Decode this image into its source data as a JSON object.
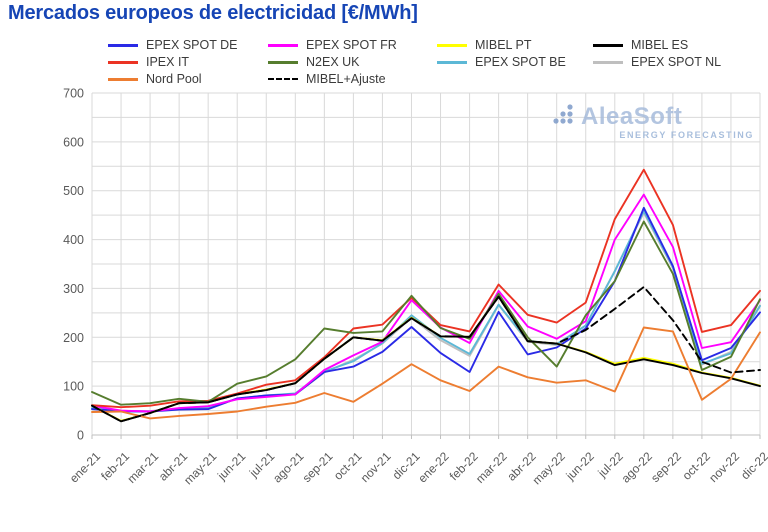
{
  "title": "Mercados europeos de electricidad [€/MWh]",
  "watermark": {
    "name": "AleaSoft",
    "tagline": "ENERGY FORECASTING"
  },
  "legend": {
    "position": "top",
    "columns": 4,
    "rows": 3
  },
  "chart_data": {
    "type": "line",
    "title": "Mercados europeos de electricidad [€/MWh]",
    "xlabel": "",
    "ylabel": "€/MWh",
    "ylim": [
      0,
      700
    ],
    "ytick_step": 100,
    "grid_step": 50,
    "grid": true,
    "legend_position": "top",
    "x": [
      "ene-21",
      "feb-21",
      "mar-21",
      "abr-21",
      "may-21",
      "jun-21",
      "jul-21",
      "ago-21",
      "sep-21",
      "oct-21",
      "nov-21",
      "dic-21",
      "ene-22",
      "feb-22",
      "mar-22",
      "abr-22",
      "may-22",
      "jun-22",
      "jul-22",
      "ago-22",
      "sep-22",
      "oct-22",
      "nov-22",
      "dic-22"
    ],
    "series": [
      {
        "name": "EPEX SPOT DE",
        "color": "#2a2ae6",
        "dash": false,
        "z": 2,
        "legend_col": 0,
        "legend_row": 0,
        "values": [
          53,
          49,
          48,
          52,
          53,
          75,
          81,
          83,
          129,
          140,
          170,
          221,
          168,
          129,
          252,
          165,
          179,
          218,
          315,
          465,
          346,
          153,
          178,
          251
        ]
      },
      {
        "name": "EPEX SPOT FR",
        "color": "#ff00ff",
        "dash": false,
        "z": 3,
        "legend_col": 1,
        "legend_row": 0,
        "values": [
          60,
          50,
          48,
          55,
          59,
          73,
          78,
          83,
          133,
          163,
          191,
          276,
          220,
          188,
          295,
          222,
          197,
          233,
          400,
          492,
          385,
          178,
          190,
          276
        ]
      },
      {
        "name": "MIBEL PT",
        "color": "#ffff00",
        "dash": false,
        "z": 4,
        "legend_col": 2,
        "legend_row": 0,
        "values": [
          60,
          29,
          45,
          65,
          67,
          84,
          93,
          106,
          156,
          200,
          194,
          240,
          202,
          201,
          284,
          192,
          187,
          170,
          146,
          158,
          146,
          128,
          117,
          101
        ]
      },
      {
        "name": "MIBEL ES",
        "color": "#000000",
        "dash": false,
        "z": 7,
        "legend_col": 3,
        "legend_row": 0,
        "values": [
          60,
          28,
          45,
          65,
          67,
          83,
          92,
          106,
          156,
          200,
          193,
          239,
          202,
          201,
          283,
          192,
          187,
          169,
          143,
          155,
          143,
          127,
          116,
          100
        ]
      },
      {
        "name": "IPEX IT",
        "color": "#eb3323",
        "dash": false,
        "z": 5,
        "legend_col": 0,
        "legend_row": 1,
        "values": [
          61,
          57,
          60,
          69,
          70,
          85,
          103,
          112,
          159,
          218,
          226,
          281,
          225,
          212,
          308,
          246,
          230,
          271,
          442,
          543,
          430,
          211,
          225,
          295
        ]
      },
      {
        "name": "N2EX UK",
        "color": "#567d2e",
        "dash": false,
        "z": 6,
        "legend_col": 1,
        "legend_row": 1,
        "values": [
          88,
          62,
          65,
          74,
          68,
          105,
          120,
          155,
          218,
          209,
          212,
          285,
          219,
          197,
          289,
          200,
          140,
          245,
          315,
          437,
          330,
          133,
          160,
          278
        ]
      },
      {
        "name": "EPEX SPOT BE",
        "color": "#5cb8d6",
        "dash": false,
        "z": 1,
        "legend_col": 2,
        "legend_row": 1,
        "values": [
          55,
          48,
          48,
          54,
          57,
          74,
          81,
          85,
          130,
          151,
          188,
          245,
          199,
          166,
          267,
          193,
          186,
          224,
          335,
          458,
          344,
          146,
          167,
          264
        ]
      },
      {
        "name": "EPEX SPOT NL",
        "color": "#bfbfbf",
        "dash": false,
        "z": 0,
        "legend_col": 3,
        "legend_row": 1,
        "values": [
          53,
          49,
          49,
          54,
          56,
          74,
          81,
          83,
          128,
          154,
          187,
          240,
          194,
          162,
          266,
          191,
          184,
          224,
          336,
          455,
          341,
          144,
          170,
          265
        ]
      },
      {
        "name": "Nord Pool",
        "color": "#ed7d31",
        "dash": false,
        "z": 8,
        "legend_col": 0,
        "legend_row": 2,
        "values": [
          47,
          48,
          34,
          39,
          43,
          48,
          58,
          66,
          86,
          68,
          105,
          145,
          112,
          90,
          140,
          118,
          107,
          112,
          89,
          220,
          212,
          72,
          115,
          210
        ]
      },
      {
        "name": "MIBEL+Ajuste",
        "color": "#000000",
        "dash": true,
        "z": 9,
        "legend_col": 1,
        "legend_row": 2,
        "values": [
          60,
          28,
          45,
          65,
          67,
          83,
          92,
          106,
          156,
          200,
          193,
          239,
          202,
          201,
          283,
          192,
          187,
          215,
          258,
          303,
          235,
          150,
          128,
          133
        ]
      }
    ]
  }
}
